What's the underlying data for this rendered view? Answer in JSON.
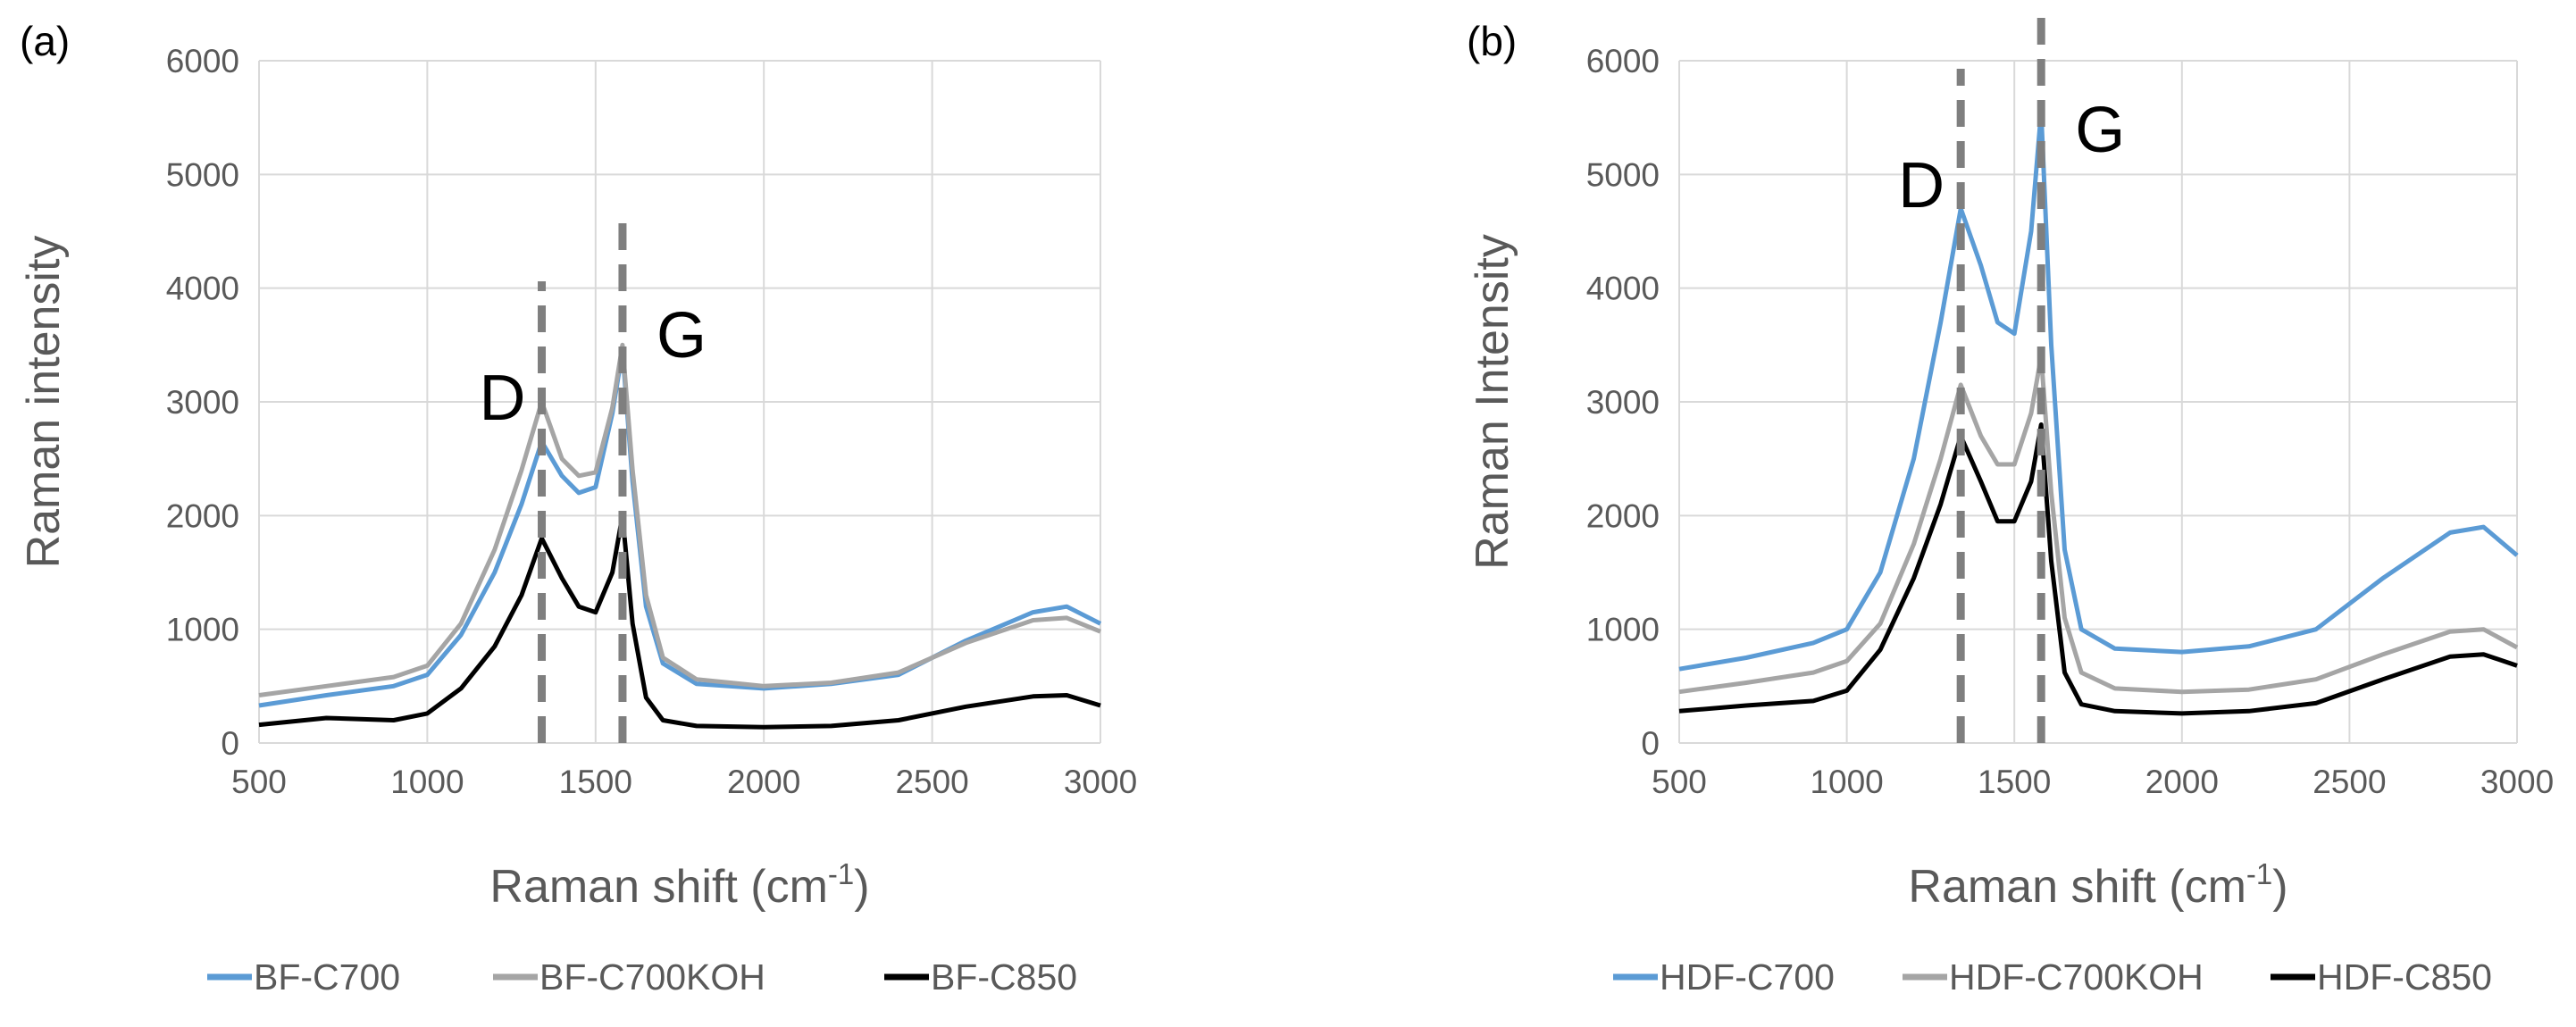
{
  "chart_data": [
    {
      "type": "line",
      "panel_label": "(a)",
      "xlabel": "Raman shift (cm",
      "xlabel_sup": "-1",
      "xlabel_end": ")",
      "ylabel": "Raman intensity",
      "xlim": [
        500,
        3000
      ],
      "ylim": [
        0,
        6000
      ],
      "x_ticks": [
        "500",
        "1000",
        "1500",
        "2000",
        "2500",
        "3000"
      ],
      "y_ticks": [
        "0",
        "1000",
        "2000",
        "3000",
        "4000",
        "5000",
        "6000"
      ],
      "grid": true,
      "legend_position": "bottom",
      "peak_markers": [
        {
          "label": "D",
          "x": 1340
        },
        {
          "label": "G",
          "x": 1580
        }
      ],
      "series": [
        {
          "name": "BF-C700",
          "color": "#5b9bd5",
          "x": [
            500,
            700,
            900,
            1000,
            1100,
            1200,
            1280,
            1340,
            1400,
            1450,
            1500,
            1550,
            1580,
            1610,
            1650,
            1700,
            1800,
            2000,
            2200,
            2400,
            2600,
            2800,
            2900,
            3000
          ],
          "y": [
            330,
            420,
            500,
            600,
            950,
            1500,
            2100,
            2650,
            2350,
            2200,
            2250,
            2900,
            3450,
            2300,
            1200,
            700,
            520,
            480,
            520,
            600,
            900,
            1150,
            1200,
            1050
          ]
        },
        {
          "name": "BF-C700KOH",
          "color": "#a5a5a5",
          "x": [
            500,
            700,
            900,
            1000,
            1100,
            1200,
            1280,
            1340,
            1400,
            1450,
            1500,
            1550,
            1580,
            1610,
            1650,
            1700,
            1800,
            2000,
            2200,
            2400,
            2600,
            2800,
            2900,
            3000
          ],
          "y": [
            420,
            500,
            580,
            680,
            1050,
            1700,
            2400,
            3000,
            2500,
            2350,
            2380,
            2950,
            3500,
            2400,
            1300,
            750,
            560,
            500,
            530,
            620,
            880,
            1080,
            1100,
            980
          ]
        },
        {
          "name": "BF-C850",
          "color": "#000000",
          "x": [
            500,
            700,
            900,
            1000,
            1100,
            1200,
            1280,
            1340,
            1400,
            1450,
            1500,
            1550,
            1580,
            1610,
            1650,
            1700,
            1800,
            2000,
            2200,
            2400,
            2600,
            2800,
            2900,
            3000
          ],
          "y": [
            160,
            220,
            200,
            260,
            480,
            850,
            1300,
            1800,
            1450,
            1200,
            1150,
            1500,
            2000,
            1050,
            400,
            200,
            150,
            140,
            150,
            200,
            320,
            410,
            420,
            330
          ]
        }
      ]
    },
    {
      "type": "line",
      "panel_label": "(b)",
      "xlabel": "Raman shift (cm",
      "xlabel_sup": "-1",
      "xlabel_end": ")",
      "ylabel": "Raman Intensity",
      "xlim": [
        500,
        3000
      ],
      "ylim": [
        0,
        6000
      ],
      "x_ticks": [
        "500",
        "1000",
        "1500",
        "2000",
        "2500",
        "3000"
      ],
      "y_ticks": [
        "0",
        "1000",
        "2000",
        "3000",
        "4000",
        "5000",
        "6000"
      ],
      "grid": true,
      "legend_position": "bottom",
      "peak_markers": [
        {
          "label": "D",
          "x": 1340
        },
        {
          "label": "G",
          "x": 1580
        }
      ],
      "series": [
        {
          "name": "HDF-C700",
          "color": "#5b9bd5",
          "x": [
            500,
            700,
            900,
            1000,
            1100,
            1200,
            1280,
            1340,
            1400,
            1450,
            1500,
            1550,
            1580,
            1610,
            1650,
            1700,
            1800,
            2000,
            2200,
            2400,
            2600,
            2800,
            2900,
            3000
          ],
          "y": [
            650,
            750,
            880,
            1000,
            1500,
            2500,
            3700,
            4700,
            4200,
            3700,
            3600,
            4500,
            5550,
            3500,
            1700,
            1000,
            830,
            800,
            850,
            1000,
            1450,
            1850,
            1900,
            1650
          ]
        },
        {
          "name": "HDF-C700KOH",
          "color": "#a5a5a5",
          "x": [
            500,
            700,
            900,
            1000,
            1100,
            1200,
            1280,
            1340,
            1400,
            1450,
            1500,
            1550,
            1580,
            1610,
            1650,
            1700,
            1800,
            2000,
            2200,
            2400,
            2600,
            2800,
            2900,
            3000
          ],
          "y": [
            450,
            530,
            620,
            720,
            1050,
            1750,
            2500,
            3150,
            2700,
            2450,
            2450,
            2900,
            3400,
            2200,
            1100,
            620,
            480,
            450,
            470,
            560,
            780,
            980,
            1000,
            840
          ]
        },
        {
          "name": "HDF-C850",
          "color": "#000000",
          "x": [
            500,
            700,
            900,
            1000,
            1100,
            1200,
            1280,
            1340,
            1400,
            1450,
            1500,
            1550,
            1580,
            1610,
            1650,
            1700,
            1800,
            2000,
            2200,
            2400,
            2600,
            2800,
            2900,
            3000
          ],
          "y": [
            280,
            330,
            370,
            460,
            820,
            1450,
            2100,
            2700,
            2300,
            1950,
            1950,
            2300,
            2800,
            1600,
            620,
            340,
            280,
            260,
            280,
            350,
            560,
            760,
            780,
            680
          ]
        }
      ]
    }
  ]
}
